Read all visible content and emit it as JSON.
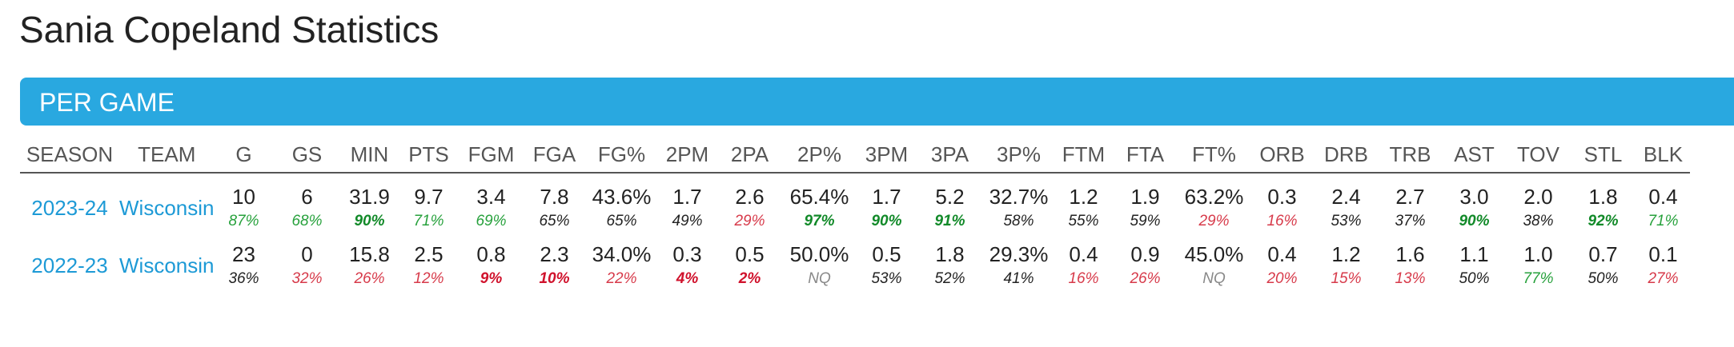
{
  "page_title": "Sania Copeland Statistics",
  "section": {
    "title": "PER GAME"
  },
  "columns": [
    "SEASON",
    "TEAM",
    "G",
    "GS",
    "MIN",
    "PTS",
    "FGM",
    "FGA",
    "FG%",
    "2PM",
    "2PA",
    "2P%",
    "3PM",
    "3PA",
    "3P%",
    "FTM",
    "FTA",
    "FT%",
    "ORB",
    "DRB",
    "TRB",
    "AST",
    "TOV",
    "STL",
    "BLK"
  ],
  "rows": [
    {
      "season": "2023-24",
      "team": "Wisconsin",
      "values": [
        "10",
        "6",
        "31.9",
        "9.7",
        "3.4",
        "7.8",
        "43.6%",
        "1.7",
        "2.6",
        "65.4%",
        "1.7",
        "5.2",
        "32.7%",
        "1.2",
        "1.9",
        "63.2%",
        "0.3",
        "2.4",
        "2.7",
        "3.0",
        "2.0",
        "1.8",
        "0.4"
      ],
      "percentiles": [
        "87%",
        "68%",
        "90%",
        "71%",
        "69%",
        "65%",
        "65%",
        "49%",
        "29%",
        "97%",
        "90%",
        "91%",
        "58%",
        "55%",
        "59%",
        "29%",
        "16%",
        "53%",
        "37%",
        "90%",
        "38%",
        "92%",
        "71%"
      ],
      "percentile_tiers": [
        "goodish",
        "goodish",
        "good",
        "goodish",
        "goodish",
        "neutral",
        "neutral",
        "neutral",
        "badish",
        "good",
        "good",
        "good",
        "neutral",
        "neutral",
        "neutral",
        "badish",
        "badish",
        "neutral",
        "neutral",
        "good",
        "neutral",
        "good",
        "goodish"
      ]
    },
    {
      "season": "2022-23",
      "team": "Wisconsin",
      "values": [
        "23",
        "0",
        "15.8",
        "2.5",
        "0.8",
        "2.3",
        "34.0%",
        "0.3",
        "0.5",
        "50.0%",
        "0.5",
        "1.8",
        "29.3%",
        "0.4",
        "0.9",
        "45.0%",
        "0.4",
        "1.2",
        "1.6",
        "1.1",
        "1.0",
        "0.7",
        "0.1"
      ],
      "percentiles": [
        "36%",
        "32%",
        "26%",
        "12%",
        "9%",
        "10%",
        "22%",
        "4%",
        "2%",
        "NQ",
        "53%",
        "52%",
        "41%",
        "16%",
        "26%",
        "NQ",
        "20%",
        "15%",
        "13%",
        "50%",
        "77%",
        "50%",
        "27%"
      ],
      "percentile_tiers": [
        "neutral",
        "badish",
        "badish",
        "badish",
        "bad",
        "bad",
        "badish",
        "bad",
        "bad",
        "nq",
        "neutral",
        "neutral",
        "neutral",
        "badish",
        "badish",
        "nq",
        "badish",
        "badish",
        "badish",
        "neutral",
        "goodish",
        "neutral",
        "badish"
      ]
    }
  ],
  "colors": {
    "section_bar": "#29a8e0",
    "link": "#1d9ad6",
    "good": "#128a29",
    "bad": "#d0122c",
    "neutral": "#222222",
    "nq": "#888888"
  }
}
